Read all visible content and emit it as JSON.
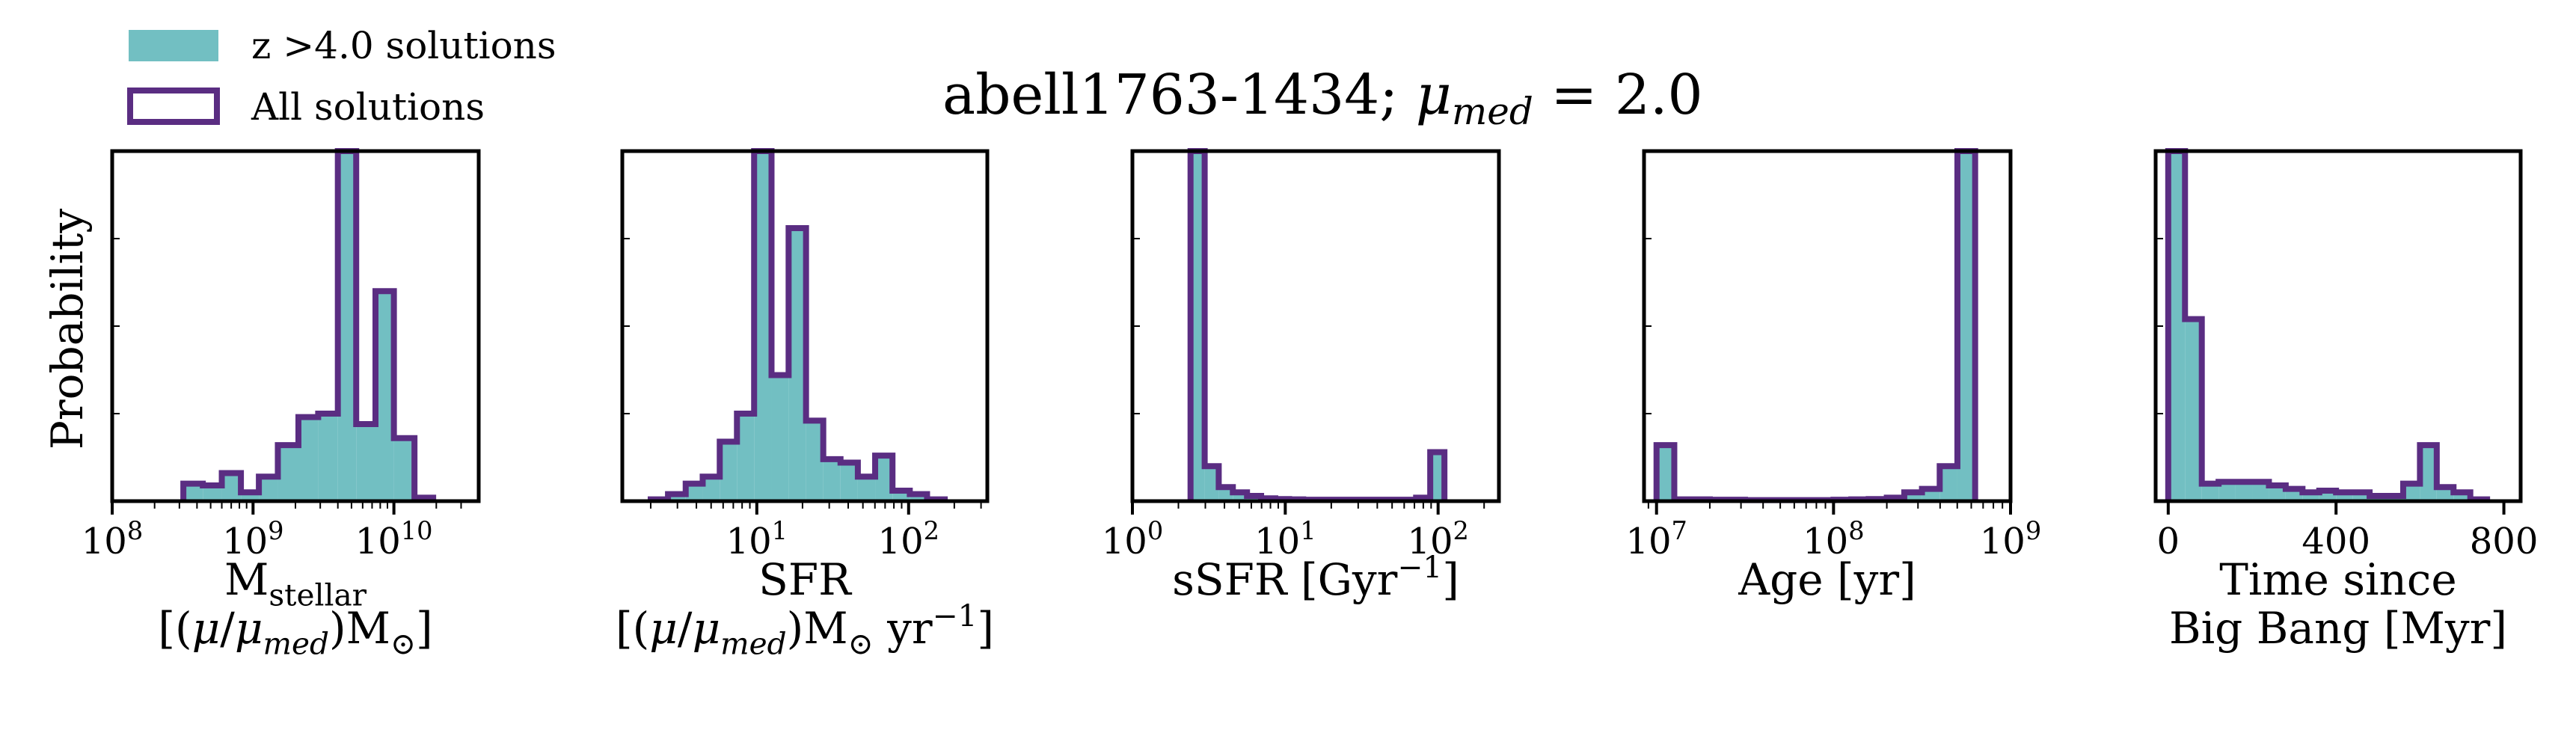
{
  "title": "abell1763-1434; μ_med = 2.0",
  "colors": {
    "fill": "#72bfc2",
    "edge": "#5a2d82"
  },
  "legend": [
    {
      "label": "z >4.0 solutions",
      "style": "filled"
    },
    {
      "label": "All solutions",
      "style": "outline"
    }
  ],
  "y_label": "Probability",
  "chart_data": [
    {
      "type": "bar",
      "xlabel": [
        "M_stellar",
        "[(μ/μ_med)M_⊙]"
      ],
      "xscale": "log",
      "xlim": [
        100000000.0,
        40000000000.0
      ],
      "ylim": [
        0,
        1
      ],
      "xticks": [
        {
          "v": 100000000.0,
          "l": "10^8"
        },
        {
          "v": 1000000000.0,
          "l": "10^9"
        },
        {
          "v": 10000000000.0,
          "l": "10^10"
        }
      ],
      "bin_edges": [
        320000000.0,
        440000000.0,
        600000000.0,
        820000000.0,
        1100000000.0,
        1500000000.0,
        2100000000.0,
        2900000000.0,
        4000000000.0,
        5400000000.0,
        7400000000.0,
        10000000000.0,
        14000000000.0,
        19000000000.0
      ],
      "values": [
        0.05,
        0.045,
        0.08,
        0.025,
        0.07,
        0.16,
        0.24,
        0.25,
        1.0,
        0.22,
        0.6,
        0.18,
        0.01
      ]
    },
    {
      "type": "bar",
      "xlabel": [
        "SFR",
        "[(μ/μ_med)M_⊙ yr^-1]"
      ],
      "xscale": "log",
      "xlim": [
        1.3,
        330
      ],
      "ylim": [
        0,
        1
      ],
      "xticks": [
        {
          "v": 10,
          "l": "10^1"
        },
        {
          "v": 100,
          "l": "10^2"
        }
      ],
      "bin_edges": [
        2.0,
        2.6,
        3.4,
        4.4,
        5.7,
        7.4,
        9.6,
        12.5,
        16.2,
        21.1,
        27.4,
        35.6,
        46.3,
        60.2,
        78.3,
        101.8,
        132.3,
        173
      ],
      "values": [
        0.005,
        0.02,
        0.05,
        0.07,
        0.17,
        0.25,
        1.0,
        0.36,
        0.78,
        0.23,
        0.12,
        0.11,
        0.07,
        0.13,
        0.03,
        0.02,
        0.005
      ]
    },
    {
      "type": "bar",
      "xlabel": [
        "sSFR [Gyr^-1]"
      ],
      "xscale": "log",
      "xlim": [
        1,
        250
      ],
      "ylim": [
        0,
        1
      ],
      "xticks": [
        {
          "v": 1,
          "l": "10^0"
        },
        {
          "v": 10,
          "l": "10^1"
        },
        {
          "v": 100,
          "l": "10^2"
        }
      ],
      "bin_edges": [
        2.4,
        2.97,
        3.67,
        4.54,
        5.62,
        6.95,
        8.6,
        10.6,
        13.1,
        16.2,
        20.1,
        24.8,
        30.7,
        38,
        47,
        58,
        71.8,
        88.8,
        110
      ],
      "values": [
        1.0,
        0.1,
        0.04,
        0.025,
        0.015,
        0.008,
        0.006,
        0.005,
        0.004,
        0.004,
        0.004,
        0.004,
        0.004,
        0.004,
        0.004,
        0.004,
        0.01,
        0.14
      ]
    },
    {
      "type": "bar",
      "xlabel": [
        "Age [yr]"
      ],
      "xscale": "log",
      "xlim": [
        8500000.0,
        1000000000.0
      ],
      "ylim": [
        0,
        1
      ],
      "xticks": [
        {
          "v": 10000000.0,
          "l": "10^7"
        },
        {
          "v": 100000000.0,
          "l": "10^8"
        },
        {
          "v": 1000000000.0,
          "l": "10^9"
        }
      ],
      "bin_edges": [
        10000000.0,
        12600000.0,
        15800000.0,
        20000000.0,
        25100000.0,
        31600000.0,
        39800000.0,
        50100000.0,
        63100000.0,
        79400000.0,
        100000000.0,
        126000000.0,
        158000000.0,
        200000000.0,
        251000000.0,
        316000000.0,
        398000000.0,
        501000000.0,
        631000000.0
      ],
      "values": [
        0.16,
        0.005,
        0.005,
        0.004,
        0.004,
        0.003,
        0.003,
        0.003,
        0.003,
        0.003,
        0.004,
        0.005,
        0.006,
        0.01,
        0.025,
        0.035,
        0.1,
        1.0
      ]
    },
    {
      "type": "bar",
      "xlabel": [
        "Time since",
        "Big Bang [Myr]"
      ],
      "xscale": "linear",
      "xlim": [
        -30,
        840
      ],
      "ylim": [
        0,
        1
      ],
      "xticks": [
        {
          "v": 0,
          "l": "0"
        },
        {
          "v": 400,
          "l": "400"
        },
        {
          "v": 800,
          "l": "800"
        }
      ],
      "bin_edges": [
        0,
        40,
        80,
        120,
        160,
        200,
        240,
        280,
        320,
        360,
        400,
        440,
        480,
        520,
        560,
        600,
        640,
        680,
        720,
        760
      ],
      "values": [
        1.0,
        0.52,
        0.05,
        0.055,
        0.055,
        0.055,
        0.045,
        0.035,
        0.025,
        0.03,
        0.025,
        0.025,
        0.015,
        0.015,
        0.05,
        0.16,
        0.04,
        0.025,
        0.005
      ]
    }
  ]
}
